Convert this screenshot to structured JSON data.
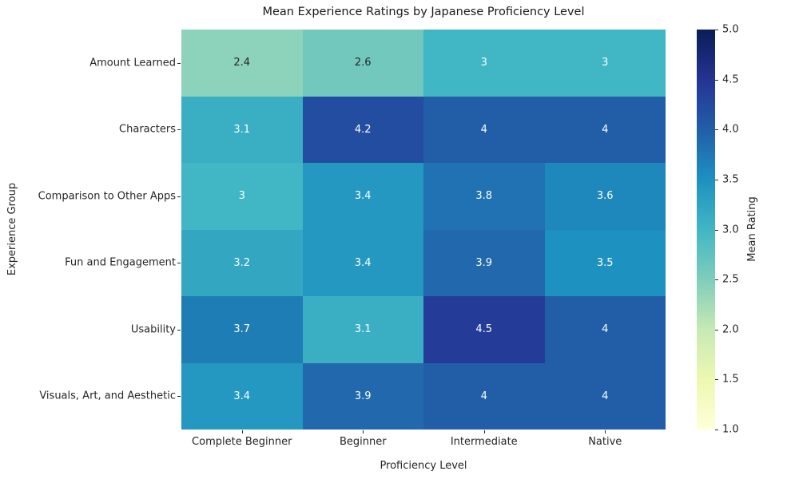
{
  "title": "Mean Experience Ratings by Japanese Proficiency Level",
  "chart_data": {
    "type": "heatmap",
    "title": "Mean Experience Ratings by Japanese Proficiency Level",
    "xlabel": "Proficiency Level",
    "ylabel": "Experience Group",
    "columns": [
      "Complete Beginner",
      "Beginner",
      "Intermediate",
      "Native"
    ],
    "rows": [
      "Amount Learned",
      "Characters",
      "Comparison to Other Apps",
      "Fun and Engagement",
      "Usability",
      "Visuals, Art, and Aesthetic"
    ],
    "values": [
      [
        2.4,
        2.6,
        3.0,
        3.0
      ],
      [
        3.1,
        4.2,
        4.0,
        4.0
      ],
      [
        3.0,
        3.4,
        3.8,
        3.6
      ],
      [
        3.2,
        3.4,
        3.9,
        3.5
      ],
      [
        3.7,
        3.1,
        4.5,
        4.0
      ],
      [
        3.4,
        3.9,
        4.0,
        4.0
      ]
    ],
    "cell_labels": [
      [
        "2.4",
        "2.6",
        "3",
        "3"
      ],
      [
        "3.1",
        "4.2",
        "4",
        "4"
      ],
      [
        "3",
        "3.4",
        "3.8",
        "3.6"
      ],
      [
        "3.2",
        "3.4",
        "3.9",
        "3.5"
      ],
      [
        "3.7",
        "3.1",
        "4.5",
        "4"
      ],
      [
        "3.4",
        "3.9",
        "4",
        "4"
      ]
    ],
    "cell_colors": [
      [
        "#8dd2ba",
        "#72c8bd",
        "#41b6c4",
        "#41b6c4"
      ],
      [
        "#3aafc3",
        "#234da0",
        "#225ea8",
        "#225ea8"
      ],
      [
        "#41b6c4",
        "#2498c1",
        "#2072b2",
        "#1e87bb"
      ],
      [
        "#33a7c2",
        "#2498c1",
        "#2168ad",
        "#1d91c0"
      ],
      [
        "#1f7db6",
        "#3aafc3",
        "#243c98",
        "#225ea8"
      ],
      [
        "#2498c1",
        "#2168ad",
        "#225ea8",
        "#225ea8"
      ]
    ],
    "cell_text_colors": [
      [
        "#262626",
        "#262626",
        "#ffffff",
        "#ffffff"
      ],
      [
        "#ffffff",
        "#ffffff",
        "#ffffff",
        "#ffffff"
      ],
      [
        "#ffffff",
        "#ffffff",
        "#ffffff",
        "#ffffff"
      ],
      [
        "#ffffff",
        "#ffffff",
        "#ffffff",
        "#ffffff"
      ],
      [
        "#ffffff",
        "#ffffff",
        "#ffffff",
        "#ffffff"
      ],
      [
        "#ffffff",
        "#ffffff",
        "#ffffff",
        "#ffffff"
      ]
    ],
    "colormap": "YlGnBu",
    "grid": false,
    "colorbar": {
      "label": "Mean Rating",
      "min": 1.0,
      "max": 5.0,
      "ticks": [
        "5.0",
        "4.5",
        "4.0",
        "3.5",
        "3.0",
        "2.5",
        "2.0",
        "1.5",
        "1.0"
      ],
      "gradient_top_to_bottom": [
        "#081d58",
        "#253494",
        "#225ea8",
        "#1d91c0",
        "#41b6c4",
        "#7fcdbb",
        "#c7e9b4",
        "#edf8b1",
        "#ffffd9"
      ]
    }
  }
}
